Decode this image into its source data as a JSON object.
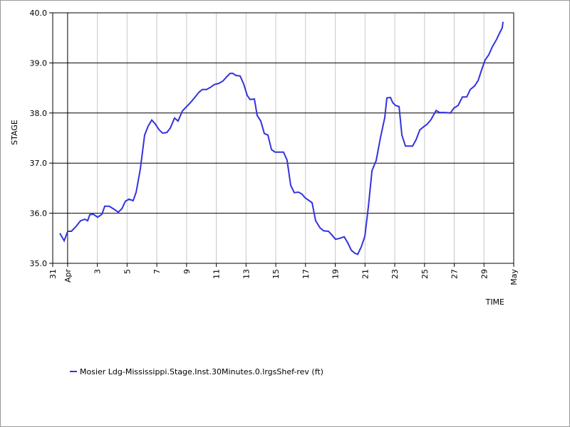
{
  "chart_data": {
    "type": "line",
    "y_label": "STAGE",
    "x_label": "TIME",
    "x": [
      0.48,
      0.77,
      1.01,
      1.25,
      1.58,
      1.87,
      2.16,
      2.35,
      2.49,
      2.73,
      3.02,
      3.31,
      3.5,
      3.79,
      4.07,
      4.41,
      4.65,
      4.89,
      5.13,
      5.41,
      5.61,
      5.89,
      6.18,
      6.42,
      6.66,
      6.9,
      7.14,
      7.38,
      7.67,
      7.91,
      8.19,
      8.43,
      8.72,
      9.01,
      9.3,
      9.58,
      9.82,
      10.06,
      10.35,
      10.64,
      10.88,
      11.16,
      11.45,
      11.69,
      11.93,
      12.12,
      12.31,
      12.6,
      12.84,
      13.08,
      13.27,
      13.56,
      13.75,
      13.99,
      14.23,
      14.47,
      14.71,
      14.95,
      15.24,
      15.52,
      15.76,
      16.0,
      16.24,
      16.53,
      16.77,
      16.96,
      17.25,
      17.44,
      17.68,
      17.97,
      18.21,
      18.54,
      18.73,
      19.02,
      19.31,
      19.6,
      19.84,
      20.08,
      20.32,
      20.51,
      20.75,
      20.99,
      21.23,
      21.47,
      21.75,
      22.04,
      22.33,
      22.47,
      22.71,
      22.86,
      23.05,
      23.29,
      23.48,
      23.72,
      23.96,
      24.2,
      24.44,
      24.68,
      24.96,
      25.16,
      25.44,
      25.78,
      26.02,
      26.4,
      26.74,
      26.98,
      27.26,
      27.55,
      27.84,
      28.08,
      28.37,
      28.61,
      28.84,
      29.08,
      29.32,
      29.56,
      29.85,
      30.04,
      30.23,
      30.28
    ],
    "series": [
      {
        "name": "Mosier Ldg-Mississippi.Stage.Inst.30Minutes.0.lrgsShef-rev (ft)",
        "color": "#3333dd",
        "values": [
          35.6,
          35.45,
          35.64,
          35.64,
          35.74,
          35.85,
          35.88,
          35.85,
          35.97,
          35.98,
          35.92,
          35.98,
          36.14,
          36.14,
          36.09,
          36.02,
          36.09,
          36.24,
          36.28,
          36.25,
          36.42,
          36.88,
          37.56,
          37.74,
          37.86,
          37.78,
          37.67,
          37.6,
          37.61,
          37.7,
          37.9,
          37.84,
          38.04,
          38.13,
          38.22,
          38.32,
          38.41,
          38.47,
          38.47,
          38.52,
          38.57,
          38.59,
          38.64,
          38.72,
          38.79,
          38.79,
          38.75,
          38.74,
          38.58,
          38.35,
          38.27,
          38.28,
          37.95,
          37.84,
          37.59,
          37.56,
          37.27,
          37.22,
          37.22,
          37.22,
          37.06,
          36.56,
          36.41,
          36.42,
          36.38,
          36.31,
          36.25,
          36.21,
          35.85,
          35.71,
          35.65,
          35.64,
          35.58,
          35.48,
          35.5,
          35.53,
          35.41,
          35.26,
          35.2,
          35.18,
          35.33,
          35.54,
          36.14,
          36.85,
          37.05,
          37.51,
          37.91,
          38.3,
          38.31,
          38.21,
          38.15,
          38.13,
          37.56,
          37.34,
          37.34,
          37.34,
          37.47,
          37.66,
          37.73,
          37.77,
          37.87,
          38.05,
          38.01,
          38.01,
          38.0,
          38.1,
          38.15,
          38.32,
          38.32,
          38.47,
          38.54,
          38.65,
          38.86,
          39.06,
          39.16,
          39.32,
          39.47,
          39.59,
          39.7,
          39.82
        ]
      }
    ],
    "xlim": [
      0,
      31
    ],
    "xticks": [
      {
        "value": 0,
        "label": "31"
      },
      {
        "value": 1,
        "label": "Apr"
      },
      3,
      5,
      7,
      9,
      11,
      13,
      15,
      17,
      19,
      21,
      23,
      25,
      27,
      29,
      {
        "value": 31,
        "label": "May"
      }
    ],
    "ylim": [
      35,
      40
    ],
    "yticks": [
      {
        "value": 35,
        "label": "35.0"
      },
      {
        "value": 36,
        "label": "36.0"
      },
      {
        "value": 37,
        "label": "37.0"
      },
      {
        "value": 38,
        "label": "38.0"
      },
      {
        "value": 39,
        "label": "39.0"
      },
      {
        "value": 40,
        "label": "40.0"
      }
    ],
    "grid": true
  }
}
